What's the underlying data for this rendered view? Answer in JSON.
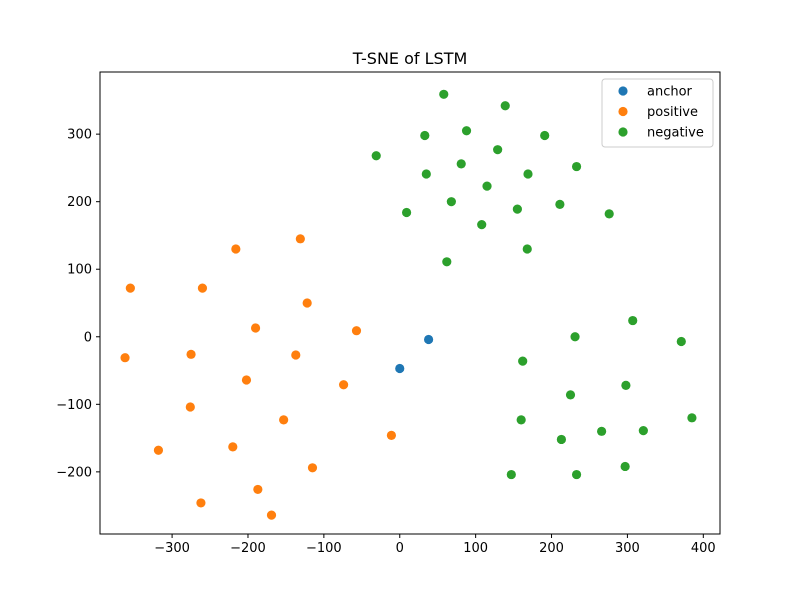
{
  "chart_data": {
    "type": "scatter",
    "title": "T-SNE of LSTM",
    "xlabel": "",
    "ylabel": "",
    "xlim": [
      -395,
      422
    ],
    "ylim": [
      -292,
      392
    ],
    "xticks": [
      -300,
      -200,
      -100,
      0,
      100,
      200,
      300,
      400
    ],
    "yticks": [
      -200,
      -100,
      0,
      100,
      200,
      300
    ],
    "grid": false,
    "legend_position": "top-right",
    "series": [
      {
        "name": "anchor",
        "color": "#1f77b4",
        "points": [
          [
            0,
            -47
          ],
          [
            38,
            -4
          ]
        ]
      },
      {
        "name": "positive",
        "color": "#ff7f0e",
        "points": [
          [
            -216,
            130
          ],
          [
            -131,
            145
          ],
          [
            -355,
            72
          ],
          [
            -260,
            72
          ],
          [
            -122,
            50
          ],
          [
            -190,
            13
          ],
          [
            -57,
            9
          ],
          [
            -362,
            -31
          ],
          [
            -275,
            -26
          ],
          [
            -137,
            -27
          ],
          [
            -202,
            -64
          ],
          [
            -74,
            -71
          ],
          [
            -276,
            -104
          ],
          [
            -153,
            -123
          ],
          [
            -220,
            -163
          ],
          [
            -11,
            -146
          ],
          [
            -318,
            -168
          ],
          [
            -115,
            -194
          ],
          [
            -187,
            -226
          ],
          [
            -262,
            -246
          ],
          [
            -169,
            -264
          ]
        ]
      },
      {
        "name": "negative",
        "color": "#2ca02c",
        "points": [
          [
            58,
            359
          ],
          [
            139,
            342
          ],
          [
            88,
            305
          ],
          [
            33,
            298
          ],
          [
            191,
            298
          ],
          [
            -31,
            268
          ],
          [
            129,
            277
          ],
          [
            81,
            256
          ],
          [
            233,
            252
          ],
          [
            35,
            241
          ],
          [
            169,
            241
          ],
          [
            115,
            223
          ],
          [
            68,
            200
          ],
          [
            211,
            196
          ],
          [
            155,
            189
          ],
          [
            9,
            184
          ],
          [
            276,
            182
          ],
          [
            108,
            166
          ],
          [
            168,
            130
          ],
          [
            62,
            111
          ],
          [
            307,
            24
          ],
          [
            231,
            0
          ],
          [
            371,
            -7
          ],
          [
            162,
            -36
          ],
          [
            298,
            -72
          ],
          [
            225,
            -86
          ],
          [
            160,
            -123
          ],
          [
            385,
            -120
          ],
          [
            321,
            -139
          ],
          [
            266,
            -140
          ],
          [
            213,
            -152
          ],
          [
            297,
            -192
          ],
          [
            147,
            -204
          ],
          [
            233,
            -204
          ]
        ]
      }
    ]
  }
}
